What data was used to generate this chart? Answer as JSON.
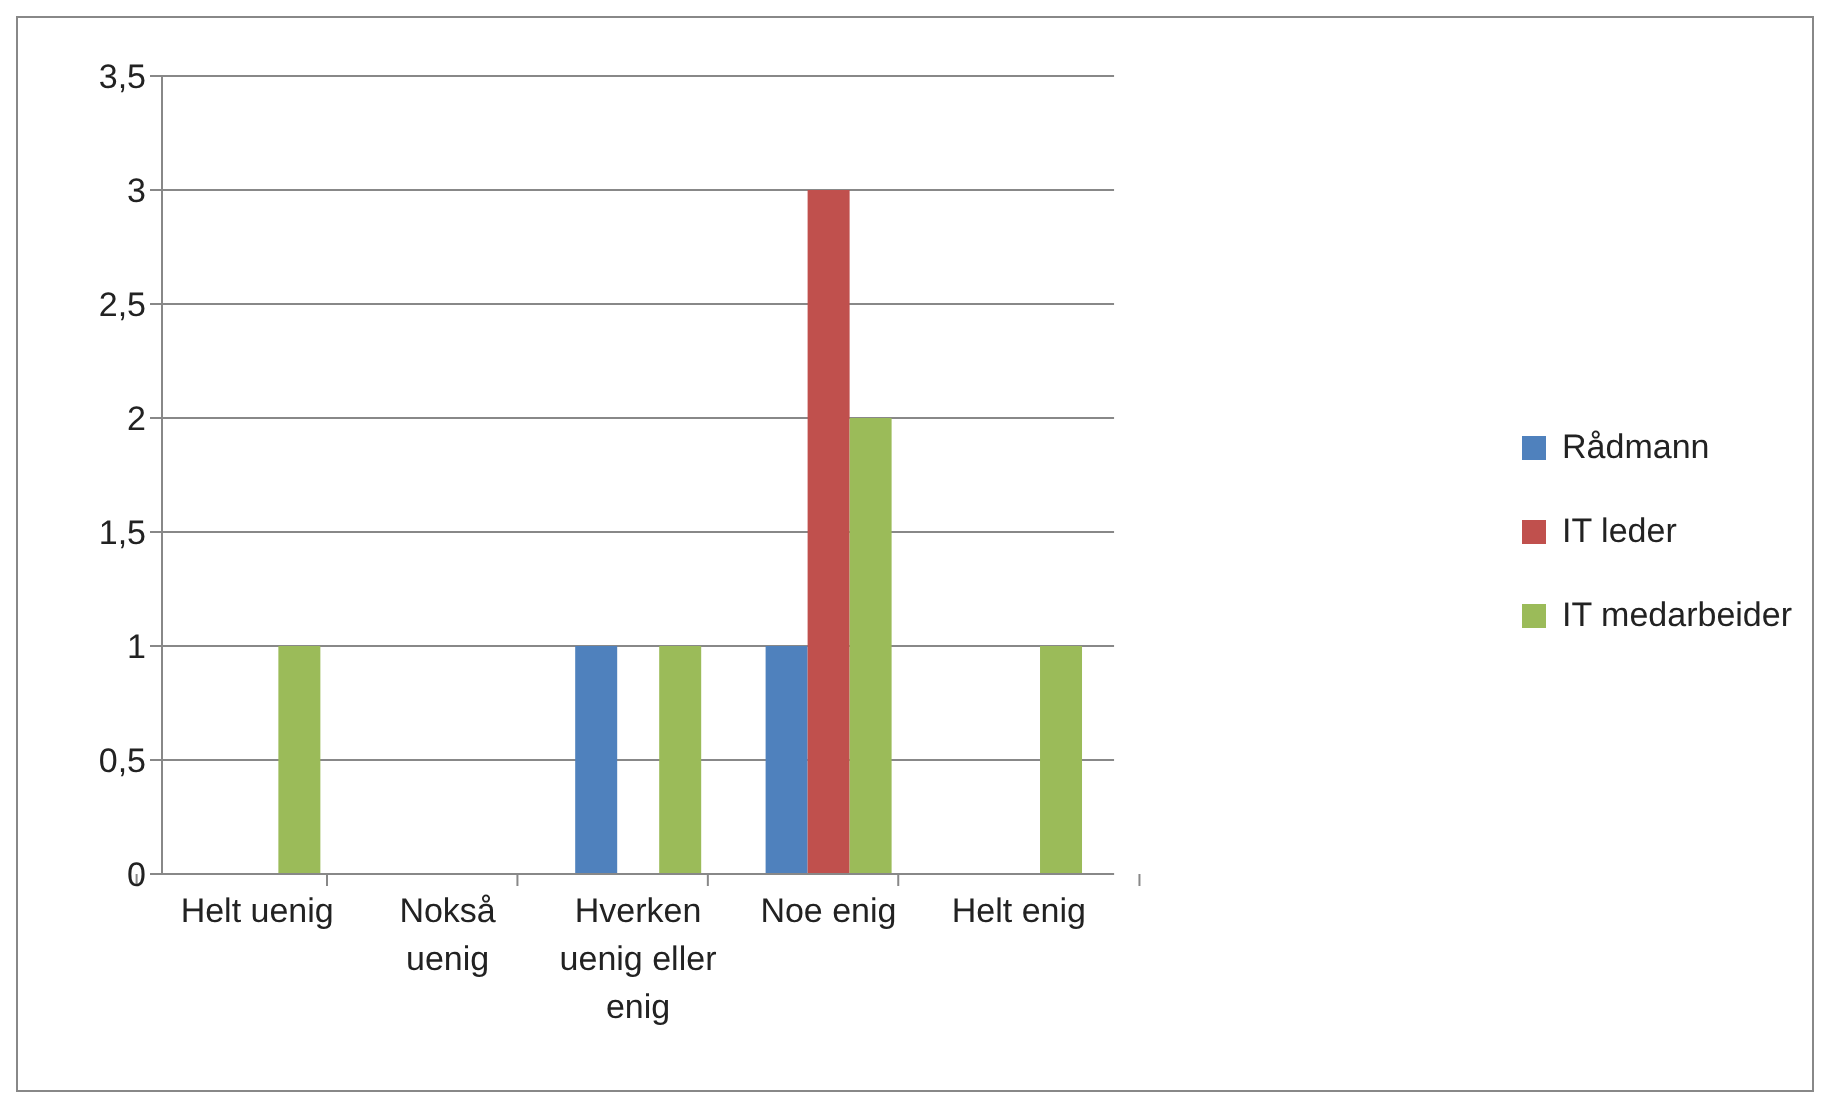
{
  "chart_data": {
    "type": "bar",
    "categories": [
      "Helt uenig",
      "Nokså uenig",
      "Hverken uenig eller enig",
      "Noe enig",
      "Helt enig"
    ],
    "series": [
      {
        "name": "Rådmann",
        "color": "#4f81bd",
        "values": [
          0,
          0,
          1,
          1,
          0
        ]
      },
      {
        "name": "IT leder",
        "color": "#c0504d",
        "values": [
          0,
          0,
          0,
          3,
          0
        ]
      },
      {
        "name": "IT medarbeider",
        "color": "#9bbb59",
        "values": [
          1,
          0,
          1,
          2,
          1
        ]
      }
    ],
    "ylim": [
      0,
      3.5
    ],
    "yticks": [
      0,
      {
        "value": 0.5,
        "label": "0,5"
      },
      1,
      {
        "value": 1.5,
        "label": "1,5"
      },
      2,
      {
        "value": 2.5,
        "label": "2,5"
      },
      3,
      {
        "value": 3.5,
        "label": "3,5"
      }
    ],
    "grid": "y",
    "legend": "right"
  }
}
